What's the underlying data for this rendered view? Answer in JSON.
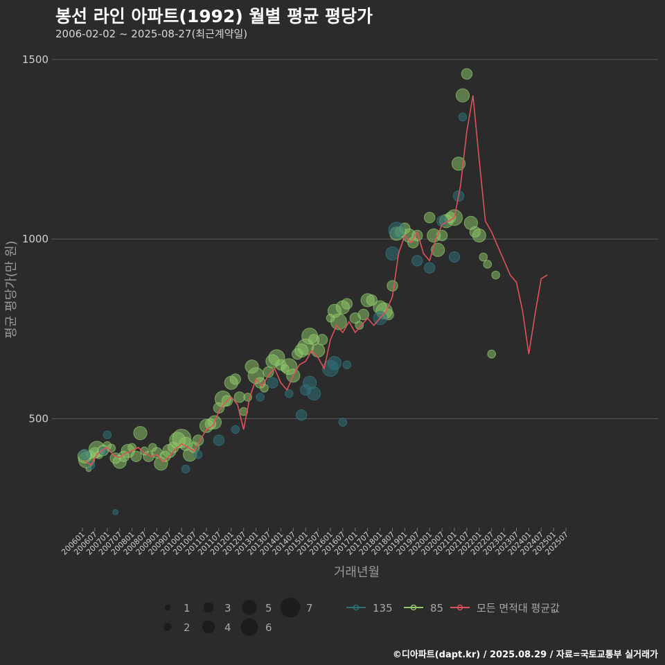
{
  "header": {
    "title": "봉선 라인 아파트(1992) 월별 평균 평당가",
    "subtitle": "2006-02-02 ~ 2025-08-27(최근계약일)",
    "caption": "©디아파트(dapt.kr) / 2025.08.29 / 자료=국토교통부 실거래가"
  },
  "colors": {
    "background": "#2b2b2c",
    "grid": "#5a5a5a",
    "series_135": "#2f6f78",
    "series_85": "#8fc96a",
    "series_all": "#e0525a"
  },
  "chart_data": {
    "type": "scatter",
    "title": "봉선 라인 아파트(1992) 월별 평균 평당가",
    "xlabel": "거래년월",
    "ylabel": "평균 평당가(만 원)",
    "ylim": [
      200,
      1550
    ],
    "y_ticks": [
      500,
      1000,
      1500
    ],
    "x_tick_labels": [
      "200601",
      "200607",
      "200701",
      "200707",
      "200801",
      "200807",
      "200901",
      "200907",
      "201001",
      "201007",
      "201101",
      "201107",
      "201201",
      "201207",
      "201301",
      "201307",
      "201401",
      "201407",
      "201501",
      "201507",
      "201601",
      "201607",
      "201701",
      "201707",
      "201801",
      "201807",
      "201901",
      "201907",
      "202001",
      "202007",
      "202101",
      "202107",
      "202201",
      "202207",
      "202301",
      "202307",
      "202401",
      "202407",
      "202501",
      "202507"
    ],
    "legend": {
      "size_title": "",
      "sizes": [
        1,
        2,
        3,
        4,
        5,
        6,
        7
      ],
      "series": [
        {
          "name": "135",
          "color": "#2f6f78"
        },
        {
          "name": "85",
          "color": "#8fc96a"
        },
        {
          "name": "모든 면적대 평균값",
          "color": "#e0525a"
        }
      ]
    },
    "points_85": [
      [
        200602,
        395,
        4
      ],
      [
        200603,
        385,
        5
      ],
      [
        200604,
        360,
        1
      ],
      [
        200605,
        400,
        2
      ],
      [
        200607,
        405,
        3
      ],
      [
        200608,
        415,
        5
      ],
      [
        200609,
        400,
        2
      ],
      [
        200611,
        412,
        3
      ],
      [
        200701,
        425,
        2
      ],
      [
        200703,
        418,
        2
      ],
      [
        200705,
        390,
        3
      ],
      [
        200707,
        380,
        4
      ],
      [
        200709,
        395,
        3
      ],
      [
        200711,
        410,
        4
      ],
      [
        200801,
        420,
        2
      ],
      [
        200803,
        395,
        3
      ],
      [
        200805,
        460,
        4
      ],
      [
        200807,
        410,
        2
      ],
      [
        200809,
        395,
        3
      ],
      [
        200811,
        420,
        2
      ],
      [
        200901,
        405,
        3
      ],
      [
        200903,
        375,
        4
      ],
      [
        200905,
        395,
        3
      ],
      [
        200907,
        410,
        4
      ],
      [
        200909,
        420,
        3
      ],
      [
        200911,
        440,
        5
      ],
      [
        201001,
        445,
        6
      ],
      [
        201003,
        430,
        4
      ],
      [
        201005,
        400,
        4
      ],
      [
        201007,
        420,
        3
      ],
      [
        201009,
        440,
        3
      ],
      [
        201101,
        480,
        4
      ],
      [
        201103,
        485,
        3
      ],
      [
        201105,
        490,
        4
      ],
      [
        201107,
        530,
        3
      ],
      [
        201109,
        555,
        5
      ],
      [
        201111,
        550,
        3
      ],
      [
        201201,
        600,
        4
      ],
      [
        201203,
        610,
        3
      ],
      [
        201205,
        560,
        3
      ],
      [
        201207,
        520,
        2
      ],
      [
        201209,
        560,
        2
      ],
      [
        201211,
        645,
        4
      ],
      [
        201301,
        620,
        5
      ],
      [
        201303,
        600,
        3
      ],
      [
        201305,
        585,
        2
      ],
      [
        201307,
        630,
        3
      ],
      [
        201309,
        660,
        4
      ],
      [
        201311,
        670,
        5
      ],
      [
        201401,
        650,
        3
      ],
      [
        201403,
        640,
        2
      ],
      [
        201405,
        645,
        5
      ],
      [
        201407,
        620,
        4
      ],
      [
        201409,
        680,
        3
      ],
      [
        201411,
        690,
        4
      ],
      [
        201501,
        700,
        5
      ],
      [
        201503,
        730,
        5
      ],
      [
        201505,
        720,
        3
      ],
      [
        201507,
        690,
        4
      ],
      [
        201509,
        720,
        3
      ],
      [
        201601,
        780,
        2
      ],
      [
        201603,
        800,
        4
      ],
      [
        201605,
        770,
        5
      ],
      [
        201607,
        810,
        4
      ],
      [
        201609,
        820,
        3
      ],
      [
        201701,
        780,
        3
      ],
      [
        201703,
        760,
        2
      ],
      [
        201705,
        790,
        3
      ],
      [
        201707,
        830,
        4
      ],
      [
        201709,
        830,
        3
      ],
      [
        201801,
        810,
        4
      ],
      [
        201803,
        800,
        5
      ],
      [
        201805,
        790,
        3
      ],
      [
        201807,
        870,
        3
      ],
      [
        201809,
        1015,
        4
      ],
      [
        201811,
        1020,
        3
      ],
      [
        201901,
        1030,
        3
      ],
      [
        201903,
        1010,
        4
      ],
      [
        201905,
        990,
        3
      ],
      [
        201907,
        1010,
        3
      ],
      [
        202001,
        1060,
        3
      ],
      [
        202003,
        1010,
        4
      ],
      [
        202005,
        970,
        4
      ],
      [
        202007,
        1010,
        3
      ],
      [
        202009,
        1050,
        4
      ],
      [
        202011,
        1060,
        3
      ],
      [
        202101,
        1060,
        5
      ],
      [
        202103,
        1210,
        4
      ],
      [
        202105,
        1400,
        4
      ],
      [
        202107,
        1460,
        3
      ],
      [
        202109,
        1045,
        4
      ],
      [
        202111,
        1020,
        3
      ],
      [
        202201,
        1010,
        4
      ],
      [
        202203,
        950,
        2
      ],
      [
        202205,
        930,
        2
      ],
      [
        202207,
        680,
        2
      ],
      [
        202209,
        900,
        2
      ]
    ],
    "points_135": [
      [
        200602,
        400,
        3
      ],
      [
        200605,
        370,
        2
      ],
      [
        200611,
        410,
        2
      ],
      [
        200701,
        455,
        2
      ],
      [
        200705,
        240,
        1
      ],
      [
        201003,
        360,
        2
      ],
      [
        201009,
        400,
        2
      ],
      [
        201107,
        440,
        3
      ],
      [
        201203,
        470,
        2
      ],
      [
        201303,
        560,
        2
      ],
      [
        201309,
        600,
        3
      ],
      [
        201405,
        570,
        2
      ],
      [
        201411,
        510,
        3
      ],
      [
        201501,
        580,
        3
      ],
      [
        201503,
        600,
        4
      ],
      [
        201505,
        570,
        4
      ],
      [
        201601,
        640,
        5
      ],
      [
        201603,
        655,
        4
      ],
      [
        201607,
        490,
        2
      ],
      [
        201609,
        650,
        2
      ],
      [
        201801,
        780,
        4
      ],
      [
        201807,
        960,
        4
      ],
      [
        201809,
        1025,
        5
      ],
      [
        201907,
        940,
        3
      ],
      [
        202001,
        920,
        3
      ],
      [
        202007,
        1050,
        3
      ],
      [
        202101,
        950,
        3
      ],
      [
        202103,
        1120,
        3
      ],
      [
        202105,
        1340,
        2
      ]
    ],
    "mean_line": [
      [
        200602,
        385
      ],
      [
        200605,
        370
      ],
      [
        200608,
        400
      ],
      [
        200611,
        415
      ],
      [
        200701,
        420
      ],
      [
        200704,
        398
      ],
      [
        200707,
        392
      ],
      [
        200710,
        405
      ],
      [
        200801,
        410
      ],
      [
        200804,
        420
      ],
      [
        200807,
        405
      ],
      [
        200810,
        395
      ],
      [
        200901,
        400
      ],
      [
        200904,
        380
      ],
      [
        200907,
        395
      ],
      [
        200910,
        415
      ],
      [
        201001,
        430
      ],
      [
        201004,
        420
      ],
      [
        201007,
        410
      ],
      [
        201010,
        440
      ],
      [
        201101,
        470
      ],
      [
        201104,
        480
      ],
      [
        201107,
        520
      ],
      [
        201110,
        545
      ],
      [
        201201,
        560
      ],
      [
        201204,
        540
      ],
      [
        201207,
        470
      ],
      [
        201210,
        560
      ],
      [
        201301,
        610
      ],
      [
        201304,
        590
      ],
      [
        201307,
        620
      ],
      [
        201310,
        640
      ],
      [
        201401,
        600
      ],
      [
        201404,
        580
      ],
      [
        201407,
        620
      ],
      [
        201410,
        650
      ],
      [
        201501,
        660
      ],
      [
        201504,
        690
      ],
      [
        201507,
        670
      ],
      [
        201510,
        640
      ],
      [
        201601,
        720
      ],
      [
        201604,
        760
      ],
      [
        201607,
        740
      ],
      [
        201610,
        770
      ],
      [
        201701,
        740
      ],
      [
        201704,
        760
      ],
      [
        201707,
        780
      ],
      [
        201710,
        760
      ],
      [
        201801,
        780
      ],
      [
        201804,
        800
      ],
      [
        201807,
        840
      ],
      [
        201810,
        960
      ],
      [
        201901,
        1010
      ],
      [
        201904,
        990
      ],
      [
        201907,
        1020
      ],
      [
        201910,
        960
      ],
      [
        202001,
        940
      ],
      [
        202004,
        1000
      ],
      [
        202007,
        1040
      ],
      [
        202010,
        1050
      ],
      [
        202101,
        1060
      ],
      [
        202104,
        1150
      ],
      [
        202107,
        1300
      ],
      [
        202110,
        1400
      ],
      [
        202201,
        1220
      ],
      [
        202204,
        1050
      ],
      [
        202207,
        1020
      ],
      [
        202210,
        980
      ],
      [
        202301,
        940
      ],
      [
        202304,
        900
      ],
      [
        202307,
        880
      ],
      [
        202310,
        800
      ],
      [
        202401,
        680
      ],
      [
        202404,
        790
      ],
      [
        202407,
        890
      ],
      [
        202410,
        900
      ]
    ]
  }
}
